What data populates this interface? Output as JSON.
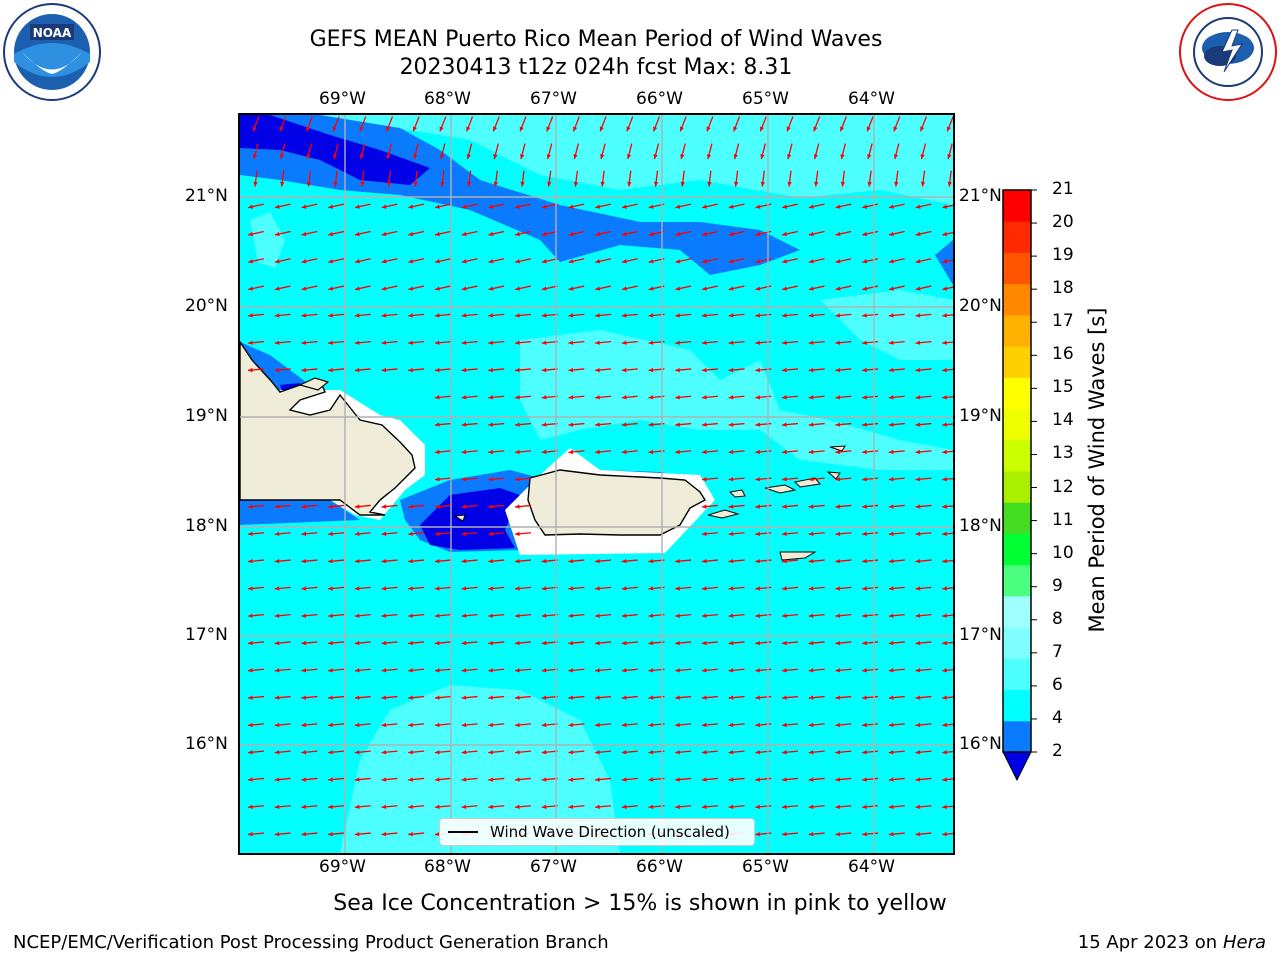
{
  "title": {
    "line1": "GEFS MEAN Puerto Rico Mean Period of Wind Waves",
    "line2": "20230413 t12z 024h fcst   Max: 8.31"
  },
  "logos": {
    "left": "noara-logo",
    "right": "nws-logo"
  },
  "map": {
    "lon_ticks": [
      "69°W",
      "68°W",
      "67°W",
      "66°W",
      "65°W",
      "64°W"
    ],
    "lat_ticks": [
      "21°N",
      "20°N",
      "19°N",
      "18°N",
      "17°N",
      "16°N"
    ],
    "legend_label": "Wind Wave Direction (unscaled)",
    "colors": {
      "land": "#efedda",
      "ocean_4_6": "#00ffff",
      "ocean_6_8": "#4dffff",
      "ocean_8_9": "#a0ffff",
      "ocean_2_4": "#0a7bff",
      "ocean_lt2": "#0000e6",
      "arrows": "#ff0000"
    }
  },
  "colorbar": {
    "label": "Mean Period of Wind Waves [s]",
    "ticks": [
      "2",
      "4",
      "6",
      "7",
      "8",
      "9",
      "10",
      "11",
      "12",
      "13",
      "14",
      "15",
      "16",
      "17",
      "18",
      "19",
      "20",
      "21"
    ],
    "colors": [
      "#0a7bff",
      "#00ffff",
      "#4dffff",
      "#80ffff",
      "#a0ffff",
      "#4dff80",
      "#00ff33",
      "#44dd22",
      "#aaee00",
      "#ccff00",
      "#eeff00",
      "#ffff00",
      "#ffd000",
      "#ffb000",
      "#ff8800",
      "#ff5500",
      "#ff2a00",
      "#ff0000"
    ],
    "under_color": "#0000e6"
  },
  "caption": "Sea Ice Concentration > 15% is shown in pink to yellow",
  "footer": {
    "left": "NCEP/EMC/Verification Post Processing Product Generation Branch",
    "date": "15 Apr 2023 on ",
    "host": "Hera"
  }
}
